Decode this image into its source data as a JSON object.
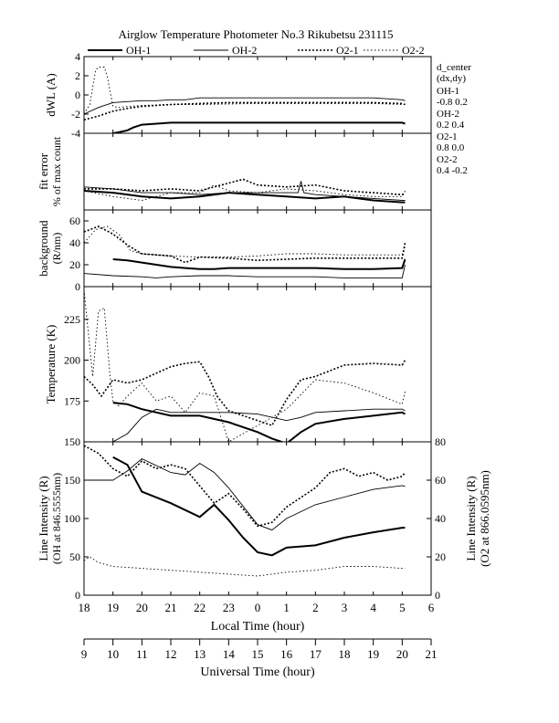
{
  "page": {
    "background": "#ffffff",
    "ink": "#000000"
  },
  "header": {
    "title": "Airglow Temperature Photometer No.3  Rikubetsu    231115"
  },
  "legend": {
    "position": "top",
    "entries": [
      {
        "label": "OH-1",
        "style": "thick-solid"
      },
      {
        "label": "OH-2",
        "style": "thin-solid"
      },
      {
        "label": "O2-1",
        "style": "thick-dotted"
      },
      {
        "label": "O2-2",
        "style": "thin-dotted"
      }
    ]
  },
  "side_info": {
    "title_line1": "d_center",
    "title_line2": "(dx,dy)",
    "items": [
      {
        "name": "OH-1",
        "value": "-0.8  0.2"
      },
      {
        "name": "OH-2",
        "value": "0.2   0.4"
      },
      {
        "name": "O2-1",
        "value": "0.8   0.0"
      },
      {
        "name": "O2-2",
        "value": "0.4   -0.2"
      }
    ]
  },
  "chart_data": [
    {
      "type": "line",
      "panel": "dwl",
      "ylabel": "dWL (A)",
      "ylim": [
        -4,
        4
      ],
      "yticks": [
        -4,
        -2,
        0,
        2,
        4
      ],
      "xlim": [
        18,
        30
      ],
      "series": [
        {
          "name": "OH-1",
          "style": "thick-solid",
          "x": [
            19.0,
            19.2,
            19.5,
            19.7,
            20.0,
            20.5,
            21.0,
            22.0,
            24.0,
            26.0,
            28.0,
            29.0,
            29.1
          ],
          "y": [
            -4.0,
            -3.9,
            -3.7,
            -3.4,
            -3.1,
            -3.0,
            -2.9,
            -2.9,
            -2.9,
            -2.9,
            -2.9,
            -2.9,
            -3.0
          ]
        },
        {
          "name": "OH-2",
          "style": "thin-solid",
          "x": [
            18.0,
            18.5,
            19.0,
            19.5,
            20.0,
            20.5,
            21.0,
            21.5,
            22.0,
            24.0,
            26.0,
            27.0,
            28.0,
            29.0,
            29.1
          ],
          "y": [
            -2.0,
            -1.3,
            -0.8,
            -0.7,
            -0.6,
            -0.6,
            -0.5,
            -0.5,
            -0.3,
            -0.3,
            -0.3,
            -0.3,
            -0.3,
            -0.5,
            -0.6
          ]
        },
        {
          "name": "O2-1",
          "style": "thick-dotted",
          "x": [
            18.0,
            18.5,
            19.0,
            19.5,
            20.0,
            21.0,
            22.0,
            23.0,
            24.0,
            25.0,
            26.0,
            27.0,
            28.0,
            29.0,
            29.1
          ],
          "y": [
            -2.6,
            -2.2,
            -1.7,
            -1.4,
            -1.2,
            -1.0,
            -0.9,
            -0.8,
            -0.8,
            -0.8,
            -0.8,
            -0.8,
            -0.8,
            -0.9,
            -1.0
          ]
        },
        {
          "name": "O2-2",
          "style": "thin-dotted",
          "x": [
            18.0,
            18.2,
            18.4,
            18.5,
            18.7,
            18.8,
            19.0,
            19.2,
            19.5,
            20.0,
            21.0,
            22.0,
            24.0,
            26.0,
            28.0,
            29.0,
            29.1
          ],
          "y": [
            -2.0,
            -1.0,
            2.6,
            2.9,
            2.9,
            2.0,
            -1.2,
            -1.3,
            -1.2,
            -1.1,
            -1.0,
            -1.0,
            -0.9,
            -0.9,
            -0.9,
            -1.0,
            -1.0
          ]
        }
      ]
    },
    {
      "type": "line",
      "panel": "fit_error",
      "ylabel": "fit error",
      "ylabel2": "% of max count",
      "ylim": [
        0,
        4
      ],
      "yticks": [],
      "xlim": [
        18,
        30
      ],
      "series": [
        {
          "name": "OH-1",
          "style": "thick-solid",
          "x": [
            18.0,
            19.0,
            20.0,
            21.0,
            22.0,
            23.0,
            24.0,
            25.0,
            26.0,
            27.0,
            28.0,
            29.0,
            29.1
          ],
          "y": [
            1.0,
            0.9,
            0.7,
            0.6,
            0.7,
            0.9,
            0.8,
            0.7,
            0.6,
            0.7,
            0.5,
            0.4,
            0.4
          ]
        },
        {
          "name": "OH-2",
          "style": "thin-solid",
          "x": [
            18.0,
            19.0,
            20.0,
            21.0,
            22.0,
            23.0,
            24.0,
            25.0,
            25.4,
            25.5,
            25.6,
            26.0,
            27.0,
            28.0,
            29.0,
            29.1
          ],
          "y": [
            1.2,
            1.1,
            0.9,
            0.9,
            0.8,
            0.9,
            0.9,
            0.9,
            0.9,
            1.5,
            0.9,
            0.8,
            0.7,
            0.6,
            0.5,
            0.5
          ]
        },
        {
          "name": "O2-1",
          "style": "thick-dotted",
          "x": [
            18.0,
            19.0,
            20.0,
            21.0,
            22.0,
            23.0,
            23.5,
            24.0,
            25.0,
            26.0,
            27.0,
            28.0,
            29.0,
            29.1
          ],
          "y": [
            1.1,
            1.1,
            1.0,
            1.1,
            1.0,
            1.4,
            1.6,
            1.3,
            1.2,
            1.3,
            1.0,
            0.9,
            0.8,
            0.9
          ]
        },
        {
          "name": "O2-2",
          "style": "thin-dotted",
          "x": [
            18.0,
            19.0,
            20.0,
            21.0,
            22.0,
            22.5,
            23.0,
            24.0,
            25.0,
            26.0,
            27.0,
            28.0,
            29.0,
            29.1
          ],
          "y": [
            1.0,
            0.7,
            0.5,
            0.9,
            0.9,
            1.3,
            1.0,
            0.9,
            1.1,
            1.0,
            0.8,
            0.7,
            0.7,
            1.0
          ]
        }
      ]
    },
    {
      "type": "line",
      "panel": "background",
      "ylabel": "background",
      "ylabel2": "(R/nm)",
      "ylim": [
        0,
        70
      ],
      "yticks": [
        0,
        20,
        40,
        60
      ],
      "xlim": [
        18,
        30
      ],
      "series": [
        {
          "name": "OH-1",
          "style": "thick-solid",
          "x": [
            19.0,
            19.5,
            20.0,
            20.5,
            21.0,
            21.5,
            22.0,
            22.5,
            23.0,
            24.0,
            25.0,
            26.0,
            27.0,
            28.0,
            29.0,
            29.1
          ],
          "y": [
            25,
            24,
            22,
            20,
            18,
            17,
            16,
            16,
            17,
            17,
            17,
            17,
            16,
            16,
            17,
            25
          ]
        },
        {
          "name": "OH-2",
          "style": "thin-solid",
          "x": [
            18.0,
            19.0,
            20.0,
            20.5,
            21.0,
            22.0,
            23.0,
            24.0,
            25.0,
            26.0,
            27.0,
            28.0,
            29.0,
            29.1
          ],
          "y": [
            12,
            10,
            9,
            8,
            9,
            10,
            10,
            9,
            9,
            9,
            8,
            8,
            8,
            20
          ]
        },
        {
          "name": "O2-1",
          "style": "thick-dotted",
          "x": [
            18.0,
            18.5,
            19.0,
            19.5,
            20.0,
            21.0,
            21.5,
            22.0,
            23.0,
            24.0,
            25.0,
            26.0,
            27.0,
            28.0,
            29.0,
            29.1
          ],
          "y": [
            50,
            55,
            48,
            38,
            30,
            28,
            22,
            27,
            26,
            24,
            25,
            26,
            26,
            26,
            26,
            40
          ]
        },
        {
          "name": "O2-2",
          "style": "thin-dotted",
          "x": [
            18.0,
            18.4,
            18.8,
            19.2,
            19.6,
            20.0,
            21.0,
            22.0,
            23.0,
            24.0,
            25.0,
            26.0,
            27.0,
            28.0,
            29.0,
            29.1
          ],
          "y": [
            40,
            52,
            55,
            48,
            33,
            30,
            28,
            27,
            27,
            28,
            30,
            30,
            29,
            29,
            29,
            36
          ]
        }
      ]
    },
    {
      "type": "line",
      "panel": "temperature",
      "ylabel": "Temperature (K)",
      "ylim": [
        150,
        245
      ],
      "yticks": [
        150,
        175,
        200,
        225
      ],
      "xlim": [
        18,
        30
      ],
      "series": [
        {
          "name": "OH-1",
          "style": "thick-solid",
          "x": [
            19.0,
            19.5,
            20.0,
            21.0,
            22.0,
            23.0,
            24.0,
            24.5,
            25.0,
            25.5,
            26.0,
            27.0,
            28.0,
            29.0,
            29.1
          ],
          "y": [
            174,
            173,
            170,
            166,
            166,
            162,
            156,
            152,
            149,
            156,
            161,
            164,
            166,
            168,
            167
          ]
        },
        {
          "name": "OH-2",
          "style": "thin-solid",
          "x": [
            18.0,
            19.0,
            19.5,
            20.0,
            20.5,
            21.0,
            22.0,
            23.0,
            24.0,
            25.0,
            25.5,
            26.0,
            27.0,
            28.0,
            29.0,
            29.1
          ],
          "y": [
            150,
            150,
            155,
            165,
            170,
            168,
            168,
            168,
            167,
            163,
            165,
            168,
            169,
            170,
            170,
            169
          ]
        },
        {
          "name": "O2-1",
          "style": "thick-dotted",
          "x": [
            18.0,
            18.3,
            18.6,
            19.0,
            19.5,
            20.0,
            20.5,
            21.0,
            21.5,
            22.0,
            22.3,
            22.6,
            23.0,
            24.0,
            24.5,
            25.0,
            25.5,
            26.0,
            27.0,
            28.0,
            29.0,
            29.1
          ],
          "y": [
            190,
            185,
            178,
            188,
            186,
            188,
            192,
            196,
            198,
            199,
            190,
            178,
            169,
            163,
            160,
            176,
            188,
            190,
            197,
            198,
            197,
            200
          ]
        },
        {
          "name": "O2-2",
          "style": "thin-dotted",
          "x": [
            18.0,
            18.1,
            18.3,
            18.5,
            18.7,
            18.9,
            19.0,
            19.2,
            19.5,
            20.0,
            20.5,
            21.0,
            21.5,
            22.0,
            22.5,
            23.0,
            24.0,
            24.5,
            25.0,
            26.0,
            27.0,
            28.0,
            29.0,
            29.1
          ],
          "y": [
            243,
            225,
            190,
            230,
            232,
            190,
            175,
            172,
            178,
            186,
            175,
            178,
            168,
            180,
            178,
            150,
            160,
            165,
            170,
            188,
            186,
            180,
            173,
            181
          ]
        }
      ]
    },
    {
      "type": "line",
      "panel": "intensity",
      "ylabel": "Line Intensity (R)",
      "ylabel2": "(OH at 846.5555nm)",
      "ylabel_right": "Line Intensity (R)",
      "ylabel_right2": "(O2 at 866.0595nm)",
      "ylim": [
        0,
        200
      ],
      "yticks": [
        0,
        50,
        100,
        150
      ],
      "ylim_right": [
        0,
        80
      ],
      "yticks_right": [
        0,
        20,
        40,
        60,
        80
      ],
      "xlim": [
        18,
        30
      ],
      "xticks_local": [
        18,
        19,
        20,
        21,
        22,
        23,
        0,
        1,
        2,
        3,
        4,
        5,
        6
      ],
      "xticks_ut": [
        9,
        10,
        11,
        12,
        13,
        14,
        15,
        16,
        17,
        18,
        19,
        20,
        21
      ],
      "xlabel": "Local Time (hour)",
      "xlabel2": "Universal Time (hour)",
      "series": [
        {
          "name": "OH-1",
          "style": "thick-solid",
          "axis": "left",
          "x": [
            19.0,
            19.5,
            20.0,
            21.0,
            22.0,
            22.5,
            23.0,
            23.5,
            24.0,
            24.5,
            25.0,
            26.0,
            27.0,
            28.0,
            29.0,
            29.1
          ],
          "y": [
            180,
            170,
            135,
            120,
            102,
            118,
            98,
            75,
            56,
            52,
            62,
            65,
            75,
            82,
            88,
            88
          ]
        },
        {
          "name": "OH-2",
          "style": "thin-solid",
          "axis": "left",
          "x": [
            18.0,
            19.0,
            19.5,
            20.0,
            21.0,
            21.5,
            22.0,
            22.5,
            23.0,
            24.0,
            24.5,
            25.0,
            26.0,
            27.0,
            28.0,
            29.0,
            29.1
          ],
          "y": [
            150,
            150,
            162,
            178,
            160,
            157,
            172,
            160,
            140,
            92,
            85,
            100,
            118,
            128,
            138,
            143,
            142
          ]
        },
        {
          "name": "O2-1",
          "style": "thick-dotted",
          "axis": "right",
          "x": [
            18.0,
            18.5,
            19.0,
            19.5,
            20.0,
            20.5,
            21.0,
            21.5,
            22.0,
            22.5,
            23.0,
            23.5,
            24.0,
            24.5,
            25.0,
            26.0,
            26.5,
            27.0,
            27.5,
            28.0,
            28.5,
            29.0,
            29.1
          ],
          "y": [
            78,
            74,
            66,
            62,
            70,
            66,
            68,
            66,
            57,
            48,
            53,
            45,
            36,
            38,
            46,
            56,
            64,
            66,
            62,
            64,
            60,
            62,
            64
          ]
        },
        {
          "name": "O2-2",
          "style": "thin-dotted",
          "axis": "right",
          "x": [
            18.0,
            18.2,
            18.5,
            19.0,
            20.0,
            21.0,
            22.0,
            23.0,
            24.0,
            25.0,
            26.0,
            27.0,
            28.0,
            29.0,
            29.1
          ],
          "y": [
            18,
            20,
            17,
            15,
            14,
            13,
            12,
            11,
            10,
            12,
            13,
            15,
            15,
            14,
            14
          ]
        }
      ]
    }
  ]
}
